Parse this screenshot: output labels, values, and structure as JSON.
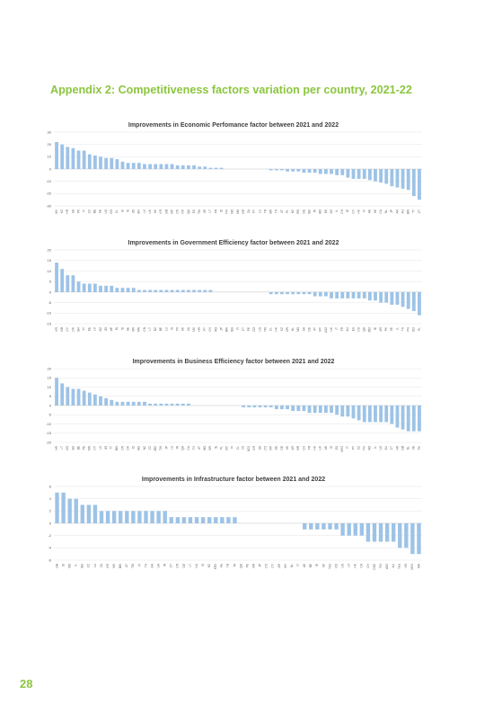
{
  "page": {
    "heading": "Appendix 2: Competitiveness factors variation per country, 2021-22",
    "page_number": "28"
  },
  "colors": {
    "accent": "#8cc63f",
    "bar": "#9dc3e6"
  },
  "chart_data": [
    {
      "type": "bar",
      "title": "Improvements in Economic Perfomance factor between 2021 and 2022",
      "ylim": [
        -30,
        30
      ],
      "yticks": [
        30,
        20,
        10,
        0,
        -10,
        -20,
        -30
      ],
      "grid": true,
      "categories": [
        "MY",
        "KZ",
        "HR",
        "SA",
        "PK",
        "IT",
        "CZ",
        "BE",
        "PE",
        "US",
        "CO",
        "CL",
        "SI",
        "IS",
        "JO",
        "BH",
        "LV",
        "UK",
        "SK",
        "KR",
        "GB",
        "MX",
        "CN",
        "DK",
        "QA",
        "ES",
        "TW",
        "VE",
        "LT",
        "FR",
        "ID",
        "PH",
        "NO",
        "MN",
        "GR",
        "ZA",
        "PT",
        "LU",
        "TR",
        "BR",
        "TH",
        "AT",
        "PL",
        "NZ",
        "RO",
        "DE",
        "BG",
        "IN",
        "BO",
        "EE",
        "SG",
        "IL",
        "CH",
        "IE",
        "CY",
        "HK",
        "FI",
        "AE",
        "SE",
        "CA",
        "NL",
        "JP",
        "AR",
        "AU",
        "BW",
        "TT",
        "CT"
      ],
      "values": [
        22,
        20,
        18,
        17,
        15,
        15,
        12,
        11,
        10,
        9,
        9,
        8,
        6,
        5,
        5,
        5,
        4,
        4,
        4,
        4,
        4,
        4,
        3,
        3,
        3,
        3,
        2,
        2,
        1,
        1,
        1,
        0,
        0,
        0,
        0,
        0,
        0,
        0,
        0,
        -1,
        -1,
        -1,
        -2,
        -2,
        -2,
        -3,
        -3,
        -3,
        -4,
        -4,
        -4,
        -5,
        -5,
        -7,
        -8,
        -8,
        -8,
        -9,
        -10,
        -11,
        -12,
        -14,
        -15,
        -16,
        -17,
        -22,
        -25
      ]
    },
    {
      "type": "bar",
      "title": "Improvements in Government Efficiency factor between 2021 and 2022",
      "ylim": [
        -15,
        20
      ],
      "yticks": [
        20,
        15,
        10,
        5,
        0,
        -5,
        -10,
        -15
      ],
      "grid": true,
      "categories": [
        "KR",
        "GB",
        "CY",
        "DK",
        "BH",
        "TT",
        "EE",
        "LV",
        "SG",
        "JO",
        "AE",
        "IN",
        "ID",
        "SE",
        "BR",
        "MN",
        "CN",
        "LT",
        "NZ",
        "BE",
        "LU",
        "IS",
        "TR",
        "SK",
        "ZA",
        "MX",
        "HR",
        "PT",
        "CH",
        "RO",
        "JP",
        "BW",
        "BG",
        "FI",
        "CT",
        "PE",
        "CO",
        "US",
        "TW",
        "CL",
        "HK",
        "KZ",
        "GR",
        "NL",
        "NO",
        "SA",
        "DE",
        "AT",
        "MY",
        "US2",
        "UK",
        "IT",
        "FR",
        "AU",
        "ES",
        "CA",
        "QA",
        "JO2",
        "IE",
        "AR",
        "PK",
        "VE",
        "IL",
        "TH",
        "PH",
        "IE2",
        "PL"
      ],
      "values": [
        14,
        11,
        8,
        8,
        5,
        4,
        4,
        4,
        3,
        3,
        3,
        2,
        2,
        2,
        2,
        1,
        1,
        1,
        1,
        1,
        1,
        1,
        1,
        1,
        1,
        1,
        1,
        1,
        1,
        0,
        0,
        0,
        0,
        0,
        0,
        0,
        0,
        0,
        0,
        -1,
        -1,
        -1,
        -1,
        -1,
        -1,
        -1,
        -1,
        -2,
        -2,
        -2,
        -3,
        -3,
        -3,
        -3,
        -3,
        -3,
        -3,
        -4,
        -4,
        -5,
        -5,
        -6,
        -6,
        -7,
        -8,
        -9,
        -11
      ]
    },
    {
      "type": "bar",
      "title": "Improvements in Business Efficiency factor between 2021 and 2022",
      "ylim": [
        -20,
        20
      ],
      "yticks": [
        20,
        15,
        10,
        5,
        0,
        -5,
        -10,
        -15,
        -20
      ],
      "grid": true,
      "categories": [
        "HR",
        "LT",
        "CO",
        "SG",
        "BE",
        "PE",
        "MN",
        "CY",
        "LV",
        "JO",
        "TT",
        "BW",
        "CN",
        "DK",
        "ID",
        "BG",
        "NZ",
        "CZ",
        "JO2",
        "TW",
        "JP",
        "LU",
        "IN",
        "QA",
        "CA",
        "TH",
        "AT",
        "BO",
        "GR",
        "IE",
        "PL",
        "MY",
        "FI",
        "CL",
        "TR",
        "NZ2",
        "KR",
        "SA",
        "LT2",
        "MX",
        "EE",
        "DE",
        "SK",
        "AR",
        "BR",
        "CH",
        "FR",
        "HK",
        "UK",
        "AE",
        "IS",
        "ES",
        "MX2",
        "IT",
        "PT",
        "KZ",
        "PH",
        "NO",
        "IL",
        "US",
        "AU",
        "CT",
        "HN",
        "GB",
        "NL",
        "VE",
        "PK"
      ],
      "values": [
        15,
        12,
        10,
        9,
        9,
        8,
        7,
        6,
        5,
        4,
        3,
        2,
        2,
        2,
        2,
        2,
        2,
        1,
        1,
        1,
        1,
        1,
        1,
        1,
        1,
        0,
        0,
        0,
        0,
        0,
        0,
        0,
        0,
        0,
        -1,
        -1,
        -1,
        -1,
        -1,
        -1,
        -2,
        -2,
        -2,
        -3,
        -3,
        -3,
        -4,
        -4,
        -4,
        -4,
        -4,
        -5,
        -6,
        -6,
        -7,
        -8,
        -9,
        -9,
        -9,
        -9,
        -9,
        -10,
        -12,
        -13,
        -14,
        -14,
        -14
      ]
    },
    {
      "type": "bar",
      "title": "Improvements in Infrastructure factor between 2021 and 2022",
      "ylim": [
        -6,
        6
      ],
      "yticks": [
        6,
        4,
        2,
        0,
        -2,
        -4,
        -6
      ],
      "grid": true,
      "categories": [
        "GB",
        "ID",
        "NO",
        "IL",
        "BG",
        "CZ",
        "LU",
        "ZA",
        "KR",
        "MX",
        "BW",
        "AT",
        "TW",
        "FI",
        "TH",
        "GA",
        "UA",
        "IN",
        "CT",
        "CN",
        "DE",
        "LT",
        "HU",
        "IS",
        "NZ",
        "KR2",
        "PK",
        "TR",
        "TA",
        "QA",
        "PE",
        "BR",
        "JP",
        "LT2",
        "CY",
        "AR",
        "MY",
        "NL",
        "IT",
        "AE",
        "BE",
        "IE",
        "SK",
        "TH2",
        "CO",
        "US",
        "LV",
        "HK",
        "CA",
        "CH",
        "CO2",
        "FI2",
        "AE2",
        "AU",
        "TH3",
        "VN",
        "MX2",
        "MN"
      ],
      "values": [
        5,
        5,
        4,
        4,
        3,
        3,
        3,
        2,
        2,
        2,
        2,
        2,
        2,
        2,
        2,
        2,
        2,
        2,
        1,
        1,
        1,
        1,
        1,
        1,
        1,
        1,
        1,
        1,
        1,
        0,
        0,
        0,
        0,
        0,
        0,
        0,
        0,
        0,
        0,
        -1,
        -1,
        -1,
        -1,
        -1,
        -1,
        -2,
        -2,
        -2,
        -2,
        -3,
        -3,
        -3,
        -3,
        -3,
        -4,
        -4,
        -5,
        -5
      ]
    }
  ]
}
